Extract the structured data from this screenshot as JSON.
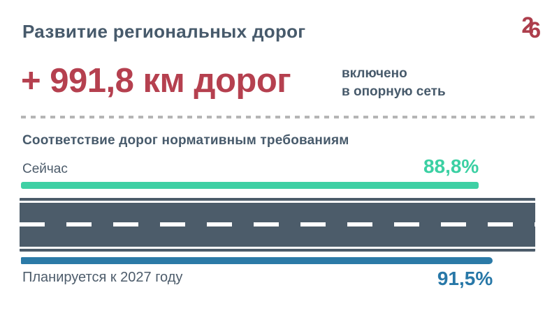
{
  "header": {
    "title": "Развитие региональных дорог",
    "logo": {
      "char1": "2",
      "char2": "6"
    }
  },
  "headline": {
    "value": "+ 991,8 км дорог",
    "note_lines": [
      "включено",
      "в опорную сеть"
    ]
  },
  "chart_data": {
    "type": "bar",
    "orientation": "horizontal",
    "title": "Соответствие дорог нормативным требованиям",
    "categories": [
      "Сейчас",
      "Планируется к 2027 году"
    ],
    "values": [
      88.8,
      91.5
    ],
    "value_labels": [
      "88,8%",
      "91,5%"
    ],
    "unit": "%",
    "xlim": [
      0,
      100
    ],
    "grid": false,
    "legend": false,
    "series_colors": [
      "#3ed0a4",
      "#2b7aa7"
    ]
  },
  "colors": {
    "heading": "#475a6b",
    "accent_red": "#b5404f",
    "logo_red": "#ad3e4c",
    "bar_now": "#3ed0a4",
    "bar_planned": "#2b7aa7",
    "value_now_text": "#3bd0a3",
    "value_planned_text": "#2878a8",
    "road": "#4c5c6a",
    "divider": "#b5b5b5",
    "background": "#ffffff"
  }
}
